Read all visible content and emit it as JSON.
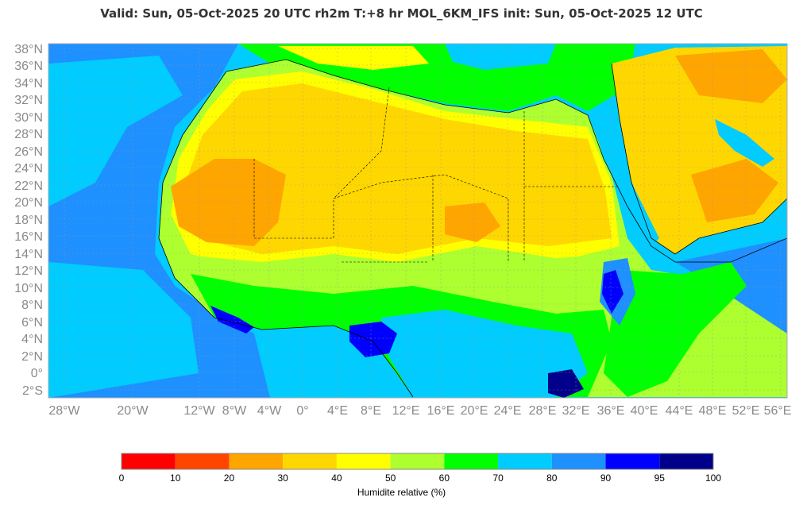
{
  "title": "Valid: Sun, 05-Oct-2025   20 UTC   rh2m   T:+8 hr   MOL_6KM_IFS      init: Sun, 05-Oct-2025   12 UTC",
  "lat_labels": [
    "38°N",
    "36°N",
    "34°N",
    "32°N",
    "30°N",
    "28°N",
    "26°N",
    "24°N",
    "22°N",
    "20°N",
    "18°N",
    "16°N",
    "14°N",
    "12°N",
    "10°N",
    "8°N",
    "6°N",
    "4°N",
    "2°N",
    "0°",
    "2°S"
  ],
  "lon_labels": [
    "28°W",
    "20°W",
    "12°W",
    "8°W",
    "4°W",
    "0°",
    "4°E",
    "8°E",
    "12°E",
    "16°E",
    "20°E",
    "24°E",
    "28°E",
    "32°E",
    "36°E",
    "40°E",
    "44°E",
    "48°E",
    "52°E",
    "56°E"
  ],
  "legend": {
    "title": "Humidite relative (%)",
    "ticks": [
      "0",
      "10",
      "20",
      "30",
      "40",
      "50",
      "60",
      "70",
      "80",
      "90",
      "95",
      "100"
    ],
    "colors": [
      "#ff0000",
      "#ff4500",
      "#ffa500",
      "#ffd700",
      "#ffff00",
      "#adff2f",
      "#00ff00",
      "#00ccff",
      "#1e90ff",
      "#0000ff",
      "#00008b"
    ]
  },
  "colors": {
    "ocean": "#00ccff",
    "humid_ocean": "#1e90ff",
    "sahara": "#ffd700",
    "hot_core": "#ffa500",
    "transition": "#ffff00",
    "sahel": "#adff2f",
    "coast_green": "#00ff00",
    "very_humid": "#0000ff",
    "saturated": "#00008b"
  }
}
